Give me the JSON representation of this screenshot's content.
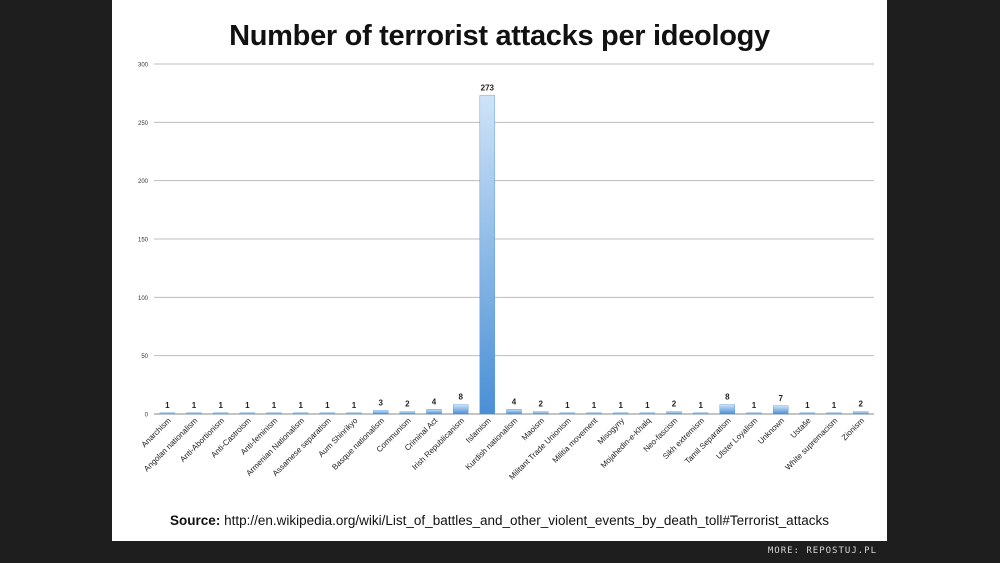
{
  "chart_data": {
    "type": "bar",
    "title": "Number of terrorist attacks per ideology",
    "xlabel": "",
    "ylabel": "",
    "ylim": [
      0,
      300
    ],
    "yticks": [
      0,
      50,
      100,
      150,
      200,
      250,
      300
    ],
    "grid": true,
    "legend": "none",
    "categories": [
      "Anarchism",
      "Angolan nationalism",
      "Anti-Abortionism",
      "Anti-Castroism",
      "Anti-feminism",
      "Armenian Nationalism",
      "Assamese separatism",
      "Aum Shinrikyo",
      "Basque nationalism",
      "Communism",
      "Criminal Act",
      "Irish Republicanism",
      "Islamism",
      "Kurdish nationalism",
      "Maoism",
      "Militant Trade Unionism",
      "Militia movement",
      "Misogyny",
      "Mojahedin-e-Khalq",
      "Neo-fascism",
      "Sikh extremism",
      "Tamil Separatism",
      "Ulster Loyalism",
      "Unknown",
      "Ustaše",
      "White supremacism",
      "Zionism"
    ],
    "values": [
      1,
      1,
      1,
      1,
      1,
      1,
      1,
      1,
      3,
      2,
      4,
      8,
      273,
      4,
      2,
      1,
      1,
      1,
      1,
      2,
      1,
      8,
      1,
      7,
      1,
      1,
      2
    ],
    "colors": {
      "bar_light": "#cfe3f7",
      "bar_dark": "#4a8fd6",
      "grid": "#bdbdbd",
      "axis": "#8a8a8a"
    }
  },
  "source": {
    "label": "Source:",
    "url_text": "http://en.wikipedia.org/wiki/List_of_battles_and_other_violent_events_by_death_toll#Terrorist_attacks"
  },
  "footer": {
    "credit": "MORE: REPOSTUJ.PL"
  }
}
